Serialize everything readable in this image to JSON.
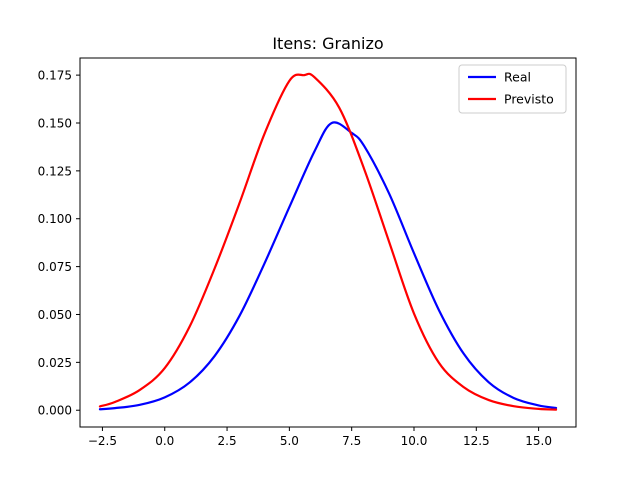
{
  "chart_data": {
    "type": "line",
    "title": "Itens: Granizo",
    "xlabel": "",
    "ylabel": "",
    "xlim": [
      -3.4,
      16.5
    ],
    "ylim": [
      -0.00876,
      0.18394
    ],
    "xticks": [
      -2.5,
      0.0,
      2.5,
      5.0,
      7.5,
      10.0,
      12.5,
      15.0
    ],
    "xtick_labels": [
      "−2.5",
      "0.0",
      "2.5",
      "5.0",
      "7.5",
      "10.0",
      "12.5",
      "15.0"
    ],
    "yticks": [
      0.0,
      0.025,
      0.05,
      0.075,
      0.1,
      0.125,
      0.15,
      0.175
    ],
    "ytick_labels": [
      "0.000",
      "0.025",
      "0.050",
      "0.075",
      "0.100",
      "0.125",
      "0.150",
      "0.175"
    ],
    "grid": false,
    "legend_position": "top-right",
    "series": [
      {
        "name": "Real",
        "color": "#0000ff",
        "x": [
          -2.6,
          -2.0,
          -1.0,
          0.0,
          1.0,
          2.0,
          3.0,
          4.0,
          5.0,
          6.0,
          6.7,
          7.5,
          8.0,
          9.0,
          10.0,
          11.0,
          12.0,
          13.0,
          14.0,
          15.0,
          15.7
        ],
        "y": [
          0.0005,
          0.0011,
          0.0028,
          0.0067,
          0.0145,
          0.0283,
          0.0493,
          0.0766,
          0.1061,
          0.135,
          0.15,
          0.1448,
          0.138,
          0.1132,
          0.082,
          0.0523,
          0.0294,
          0.0146,
          0.0064,
          0.0025,
          0.0012
        ]
      },
      {
        "name": "Previsto",
        "color": "#ff0000",
        "x": [
          -2.6,
          -2.0,
          -1.0,
          0.0,
          1.0,
          2.0,
          3.0,
          4.0,
          5.0,
          5.6,
          6.0,
          7.0,
          8.0,
          9.0,
          10.0,
          11.0,
          12.0,
          13.0,
          14.0,
          15.0,
          15.7
        ],
        "y": [
          0.002,
          0.0043,
          0.0106,
          0.022,
          0.0437,
          0.074,
          0.1082,
          0.1443,
          0.172,
          0.175,
          0.174,
          0.158,
          0.126,
          0.088,
          0.0505,
          0.0248,
          0.012,
          0.0053,
          0.0021,
          0.0007,
          0.0003
        ]
      }
    ]
  }
}
